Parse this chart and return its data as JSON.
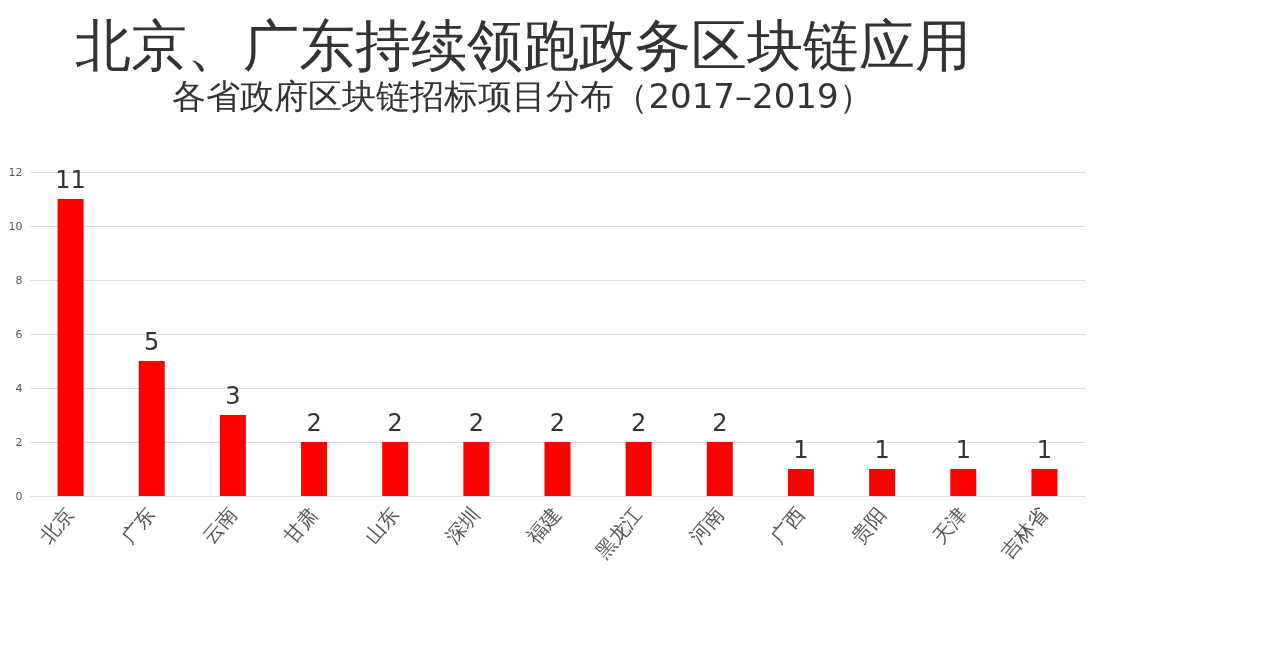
{
  "chart_data": {
    "type": "bar",
    "title": "北京、广东持续领跑政务区块链应用",
    "subtitle": "各省政府区块链招标项目分布（2017–2019）",
    "categories": [
      "北京",
      "广东",
      "云南",
      "甘肃",
      "山东",
      "深圳",
      "福建",
      "黑龙江",
      "河南",
      "广西",
      "贵阳",
      "天津",
      "吉林省"
    ],
    "values": [
      11,
      5,
      3,
      2,
      2,
      2,
      2,
      2,
      2,
      1,
      1,
      1,
      1
    ],
    "color": "#ff0000",
    "ylim": [
      0,
      12
    ],
    "yticks": [
      0,
      2,
      4,
      6,
      8,
      10,
      12
    ],
    "grid": "y",
    "data_labels": true
  }
}
